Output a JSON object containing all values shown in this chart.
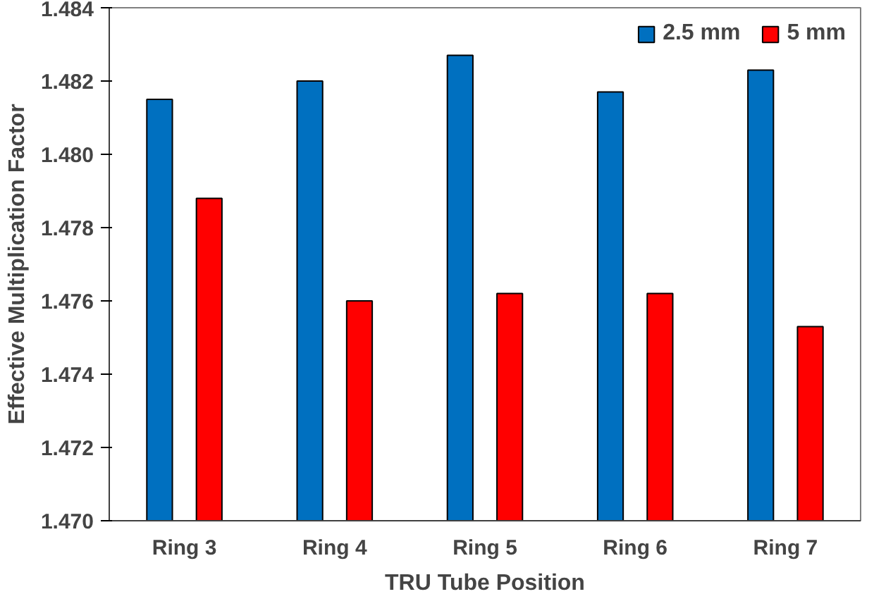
{
  "chart_data": {
    "type": "bar",
    "xlabel": "TRU Tube Position",
    "ylabel": "Effective Multiplication Factor",
    "categories": [
      "Ring 3",
      "Ring 4",
      "Ring 5",
      "Ring 6",
      "Ring 7"
    ],
    "series": [
      {
        "name": "2.5 mm",
        "color": "#0070c0",
        "values": [
          1.4815,
          1.482,
          1.4827,
          1.4817,
          1.4823
        ]
      },
      {
        "name": "5 mm",
        "color": "#ff0000",
        "values": [
          1.4788,
          1.476,
          1.4762,
          1.4762,
          1.4753
        ]
      }
    ],
    "ylim": [
      1.47,
      1.484
    ],
    "yticks": [
      {
        "value": 1.47,
        "label": "1.470"
      },
      {
        "value": 1.472,
        "label": "1.472"
      },
      {
        "value": 1.474,
        "label": "1.474"
      },
      {
        "value": 1.476,
        "label": "1.476"
      },
      {
        "value": 1.478,
        "label": "1.478"
      },
      {
        "value": 1.48,
        "label": "1.480"
      },
      {
        "value": 1.482,
        "label": "1.482"
      },
      {
        "value": 1.484,
        "label": "1.484"
      }
    ],
    "grid": false,
    "legend": "top right"
  }
}
